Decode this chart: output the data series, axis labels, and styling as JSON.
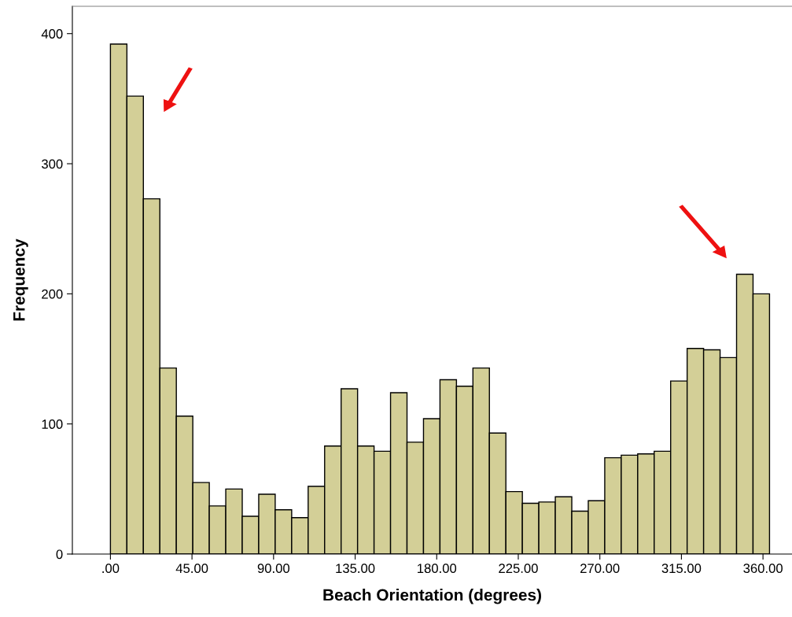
{
  "chart_data": {
    "type": "histogram",
    "xlabel": "Beach Orientation (degrees)",
    "ylabel": "Frequency",
    "bins": [
      0,
      9.09,
      18.18,
      27.27,
      36.36,
      45.45,
      54.54,
      63.63,
      72.72,
      81.81,
      90.9,
      99.99,
      109.08,
      118.17,
      127.26,
      136.35,
      145.44,
      154.53,
      163.62,
      172.71,
      181.8,
      190.89,
      199.98,
      209.07,
      218.16,
      227.25,
      236.34,
      245.43,
      254.52,
      263.61,
      272.7,
      281.79,
      290.88,
      299.97,
      309.06,
      318.15,
      327.24,
      336.33,
      345.42,
      354.51,
      363.6
    ],
    "values": [
      392,
      352,
      273,
      143,
      106,
      55,
      37,
      50,
      29,
      46,
      34,
      28,
      52,
      83,
      127,
      83,
      79,
      124,
      86,
      104,
      134,
      129,
      143,
      93,
      48,
      39,
      40,
      44,
      33,
      41,
      74,
      76,
      77,
      79,
      133,
      158,
      157,
      151,
      215,
      200
    ],
    "color": "#d3cf97",
    "xlim": [
      -21,
      376
    ],
    "ylim": [
      0,
      421
    ],
    "xticks": [
      {
        "value": 0,
        "label": ".00"
      },
      {
        "value": 45,
        "label": "45.00"
      },
      {
        "value": 90,
        "label": "90.00"
      },
      {
        "value": 135,
        "label": "135.00"
      },
      {
        "value": 180,
        "label": "180.00"
      },
      {
        "value": 225,
        "label": "225.00"
      },
      {
        "value": 270,
        "label": "270.00"
      },
      {
        "value": 315,
        "label": "315.00"
      },
      {
        "value": 360,
        "label": "360.00"
      }
    ],
    "yticks": [
      0,
      100,
      200,
      300,
      400
    ],
    "grid": false
  }
}
